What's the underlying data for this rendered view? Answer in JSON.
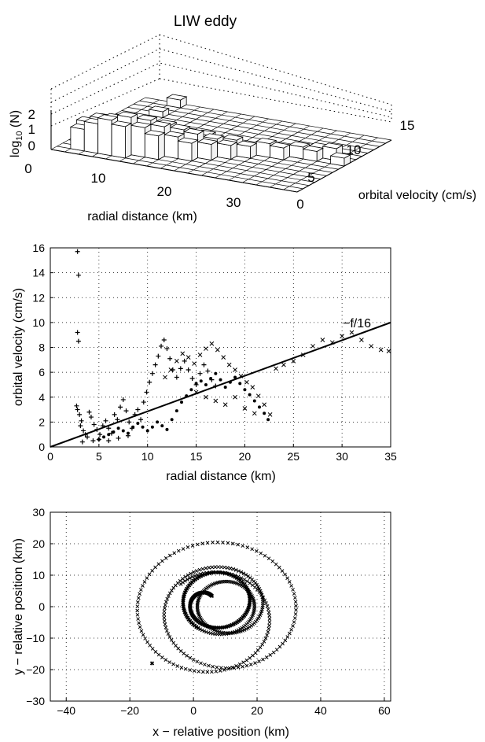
{
  "figure_title": "LIW eddy",
  "chart_data": [
    {
      "type": "bar3d",
      "title": "LIW eddy",
      "xlabel": "radial distance (km)",
      "ylabel": "orbital velocity (cm/s)",
      "zlabel_base": "log",
      "zlabel_sub": "10",
      "zlabel_rest": " (N)",
      "x_ticks": [
        "10",
        "20",
        "30"
      ],
      "y_ticks": [
        "0",
        "5",
        "10",
        "15"
      ],
      "z_ticks": [
        "0",
        "1",
        "2"
      ],
      "x_range": [
        0,
        35
      ],
      "y_range": [
        0,
        16
      ],
      "z_range": [
        0,
        2
      ],
      "bins_x": 18,
      "bins_y": 16,
      "cells": [
        {
          "x": 1,
          "y": 1,
          "z": 1.1
        },
        {
          "x": 1,
          "y": 2,
          "z": 1.3
        },
        {
          "x": 2,
          "y": 1,
          "z": 1.5
        },
        {
          "x": 2,
          "y": 2,
          "z": 1.6
        },
        {
          "x": 2,
          "y": 3,
          "z": 1.4
        },
        {
          "x": 3,
          "y": 1,
          "z": 1.8
        },
        {
          "x": 3,
          "y": 2,
          "z": 1.7
        },
        {
          "x": 3,
          "y": 3,
          "z": 1.2
        },
        {
          "x": 4,
          "y": 1,
          "z": 1.6
        },
        {
          "x": 4,
          "y": 2,
          "z": 1.9
        },
        {
          "x": 4,
          "y": 3,
          "z": 1.5
        },
        {
          "x": 4,
          "y": 4,
          "z": 1.0
        },
        {
          "x": 5,
          "y": 2,
          "z": 1.5
        },
        {
          "x": 5,
          "y": 3,
          "z": 1.7
        },
        {
          "x": 5,
          "y": 4,
          "z": 1.3
        },
        {
          "x": 6,
          "y": 2,
          "z": 1.2
        },
        {
          "x": 6,
          "y": 3,
          "z": 1.5
        },
        {
          "x": 6,
          "y": 4,
          "z": 1.4
        },
        {
          "x": 7,
          "y": 3,
          "z": 1.1
        },
        {
          "x": 7,
          "y": 4,
          "z": 1.3
        },
        {
          "x": 7,
          "y": 5,
          "z": 1.0
        },
        {
          "x": 8,
          "y": 3,
          "z": 0.9
        },
        {
          "x": 8,
          "y": 4,
          "z": 1.2
        },
        {
          "x": 8,
          "y": 6,
          "z": 0.8
        },
        {
          "x": 9,
          "y": 4,
          "z": 0.8
        },
        {
          "x": 9,
          "y": 5,
          "z": 0.9
        },
        {
          "x": 10,
          "y": 5,
          "z": 0.7
        },
        {
          "x": 10,
          "y": 6,
          "z": 0.8
        },
        {
          "x": 11,
          "y": 6,
          "z": 0.6
        },
        {
          "x": 12,
          "y": 7,
          "z": 0.7
        },
        {
          "x": 13,
          "y": 7,
          "z": 0.6
        },
        {
          "x": 14,
          "y": 8,
          "z": 0.6
        },
        {
          "x": 15,
          "y": 8,
          "z": 0.5
        },
        {
          "x": 16,
          "y": 9,
          "z": 0.6
        },
        {
          "x": 15,
          "y": 9,
          "z": 0.5
        },
        {
          "x": 17,
          "y": 8,
          "z": 0.4
        },
        {
          "x": 2,
          "y": 12,
          "z": 0.3
        },
        {
          "x": 2,
          "y": 15,
          "z": 0.4
        }
      ]
    },
    {
      "type": "scatter",
      "xlabel": "radial distance (km)",
      "ylabel": "orbital velocity (cm/s)",
      "xlim": [
        0,
        35
      ],
      "ylim": [
        0,
        16
      ],
      "xticks": [
        0,
        5,
        10,
        15,
        20,
        25,
        30,
        35
      ],
      "yticks": [
        0,
        2,
        4,
        6,
        8,
        10,
        12,
        14,
        16
      ],
      "grid": true,
      "fit_line": {
        "label": "−f/16",
        "x": [
          0,
          35
        ],
        "y": [
          0,
          10
        ]
      },
      "series": [
        {
          "marker": "+",
          "points": [
            [
              2.8,
              15.7
            ],
            [
              2.9,
              13.8
            ],
            [
              2.8,
              9.2
            ],
            [
              2.9,
              8.5
            ],
            [
              2.7,
              3.3
            ],
            [
              2.8,
              3.0
            ],
            [
              3.0,
              2.6
            ],
            [
              3.2,
              2.1
            ],
            [
              3.1,
              1.7
            ],
            [
              3.4,
              1.3
            ],
            [
              3.6,
              1.0
            ],
            [
              3.8,
              0.8
            ],
            [
              4.0,
              2.8
            ],
            [
              4.2,
              2.4
            ],
            [
              4.5,
              1.8
            ],
            [
              4.8,
              1.4
            ],
            [
              5.1,
              1.0
            ],
            [
              5.4,
              1.7
            ],
            [
              5.7,
              2.1
            ],
            [
              6.0,
              1.5
            ],
            [
              6.3,
              1.1
            ],
            [
              6.6,
              2.6
            ],
            [
              6.9,
              2.2
            ],
            [
              7.2,
              3.2
            ],
            [
              7.5,
              3.8
            ],
            [
              7.8,
              2.9
            ],
            [
              8.1,
              2.0
            ],
            [
              8.4,
              1.5
            ],
            [
              8.7,
              2.6
            ],
            [
              9.0,
              3.0
            ],
            [
              9.3,
              2.2
            ],
            [
              9.6,
              3.6
            ],
            [
              9.9,
              4.4
            ],
            [
              10.2,
              5.2
            ],
            [
              10.5,
              5.9
            ],
            [
              10.8,
              6.6
            ],
            [
              11.1,
              7.3
            ],
            [
              11.4,
              8.1
            ],
            [
              11.7,
              8.6
            ],
            [
              12.0,
              7.9
            ],
            [
              12.3,
              7.1
            ],
            [
              12.6,
              6.2
            ],
            [
              13.0,
              5.6
            ],
            [
              13.4,
              6.3
            ],
            [
              13.8,
              6.9
            ],
            [
              14.2,
              6.2
            ],
            [
              14.6,
              5.5
            ],
            [
              15.0,
              5.0
            ],
            [
              15.4,
              5.9
            ],
            [
              15.8,
              6.6
            ],
            [
              16.2,
              6.1
            ],
            [
              16.6,
              5.4
            ],
            [
              17.0,
              4.9
            ],
            [
              6.0,
              0.5
            ],
            [
              5.0,
              0.6
            ],
            [
              4.4,
              0.5
            ],
            [
              3.3,
              0.4
            ],
            [
              7.0,
              0.7
            ],
            [
              8.0,
              0.9
            ]
          ]
        },
        {
          "marker": "×",
          "points": [
            [
              11.8,
              5.6
            ],
            [
              12.4,
              6.2
            ],
            [
              13.0,
              6.9
            ],
            [
              13.6,
              7.5
            ],
            [
              14.2,
              7.2
            ],
            [
              14.8,
              6.7
            ],
            [
              15.4,
              7.4
            ],
            [
              16.0,
              7.9
            ],
            [
              16.6,
              8.3
            ],
            [
              17.2,
              7.8
            ],
            [
              17.8,
              7.2
            ],
            [
              18.4,
              6.6
            ],
            [
              19.0,
              6.2
            ],
            [
              19.6,
              5.7
            ],
            [
              20.2,
              5.2
            ],
            [
              20.8,
              4.8
            ],
            [
              21.4,
              4.1
            ],
            [
              22.0,
              3.4
            ],
            [
              22.6,
              2.6
            ],
            [
              23.2,
              6.3
            ],
            [
              24.0,
              6.6
            ],
            [
              25.0,
              6.9
            ],
            [
              26.0,
              7.4
            ],
            [
              27.0,
              8.1
            ],
            [
              28.0,
              8.6
            ],
            [
              29.0,
              8.4
            ],
            [
              30.0,
              8.9
            ],
            [
              31.0,
              9.2
            ],
            [
              32.0,
              8.6
            ],
            [
              33.0,
              8.1
            ],
            [
              34.0,
              7.8
            ],
            [
              34.8,
              7.7
            ],
            [
              15.0,
              4.4
            ],
            [
              16.0,
              4.0
            ],
            [
              17.0,
              3.7
            ],
            [
              18.0,
              3.4
            ],
            [
              19.0,
              4.0
            ],
            [
              20.0,
              3.1
            ],
            [
              21.0,
              2.7
            ]
          ]
        },
        {
          "marker": ".",
          "points": [
            [
              5.0,
              0.6
            ],
            [
              5.5,
              0.8
            ],
            [
              6.0,
              1.0
            ],
            [
              6.5,
              1.2
            ],
            [
              7.0,
              1.5
            ],
            [
              7.5,
              1.3
            ],
            [
              8.0,
              1.1
            ],
            [
              8.5,
              1.6
            ],
            [
              9.0,
              1.9
            ],
            [
              9.5,
              1.6
            ],
            [
              10.0,
              1.3
            ],
            [
              10.5,
              1.6
            ],
            [
              11.0,
              2.0
            ],
            [
              11.5,
              1.7
            ],
            [
              12.0,
              1.4
            ],
            [
              12.5,
              2.2
            ],
            [
              13.0,
              2.9
            ],
            [
              13.5,
              3.6
            ],
            [
              14.0,
              4.1
            ],
            [
              14.5,
              4.6
            ],
            [
              15.0,
              5.1
            ],
            [
              15.5,
              5.3
            ],
            [
              16.0,
              5.0
            ],
            [
              16.5,
              5.5
            ],
            [
              17.0,
              5.9
            ],
            [
              17.5,
              5.4
            ],
            [
              18.0,
              4.8
            ],
            [
              18.5,
              5.2
            ],
            [
              19.0,
              5.6
            ],
            [
              19.5,
              5.1
            ],
            [
              20.0,
              4.6
            ],
            [
              20.5,
              4.2
            ],
            [
              21.0,
              3.7
            ],
            [
              21.5,
              3.2
            ],
            [
              22.0,
              2.7
            ],
            [
              22.4,
              2.2
            ]
          ]
        }
      ]
    },
    {
      "type": "scatter",
      "xlabel": "x − relative position (km)",
      "ylabel": "y − relative position (km)",
      "xlim": [
        -45,
        62
      ],
      "ylim": [
        -30,
        30
      ],
      "xticks": [
        -40,
        -20,
        0,
        20,
        40,
        60
      ],
      "yticks": [
        -30,
        -20,
        -10,
        0,
        10,
        20,
        30
      ],
      "grid": true,
      "trajectory": {
        "description_free": true,
        "start": [
          -13,
          -18
        ],
        "end": [
          -2,
          1
        ]
      }
    }
  ]
}
